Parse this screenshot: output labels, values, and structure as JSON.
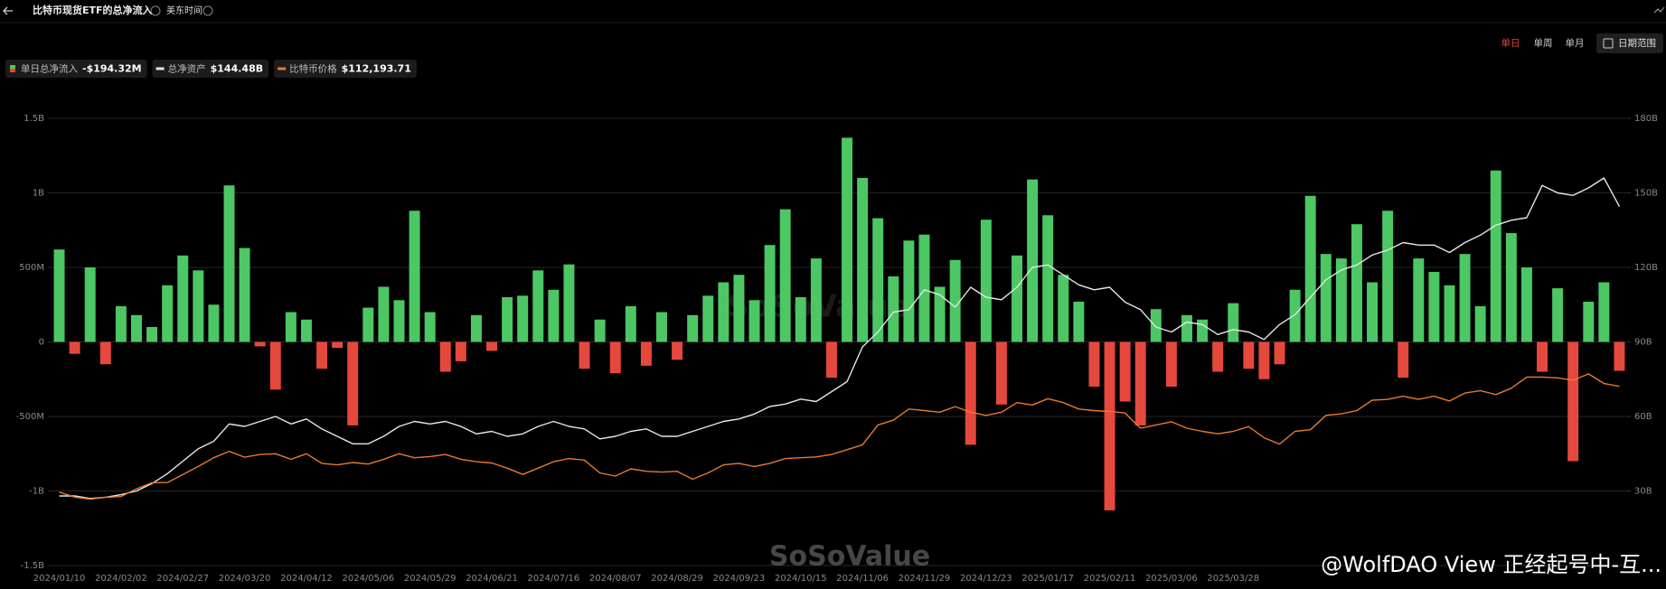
{
  "header": {
    "title": "比特币现货ETF的总净流入",
    "timezone": "美东时间",
    "periods": [
      "单日",
      "单周",
      "单月"
    ],
    "date_range": "日期范围"
  },
  "overlay": {
    "watermark": "SoSoValue",
    "credit": "@WolfDAO View 正经起号中-互..."
  },
  "chart_data": {
    "type": "bar",
    "grid": true,
    "categories": [
      "2024/01/10",
      null,
      null,
      null,
      "2024/02/02",
      null,
      null,
      null,
      "2024/02/27",
      null,
      null,
      null,
      "2024/03/20",
      null,
      null,
      null,
      "2024/04/12",
      null,
      null,
      null,
      "2024/05/06",
      null,
      null,
      null,
      "2024/05/29",
      null,
      null,
      null,
      "2024/06/21",
      null,
      null,
      null,
      "2024/07/16",
      null,
      null,
      null,
      "2024/08/07",
      null,
      null,
      null,
      "2024/08/29",
      null,
      null,
      null,
      "2024/09/23",
      null,
      null,
      null,
      "2024/10/15",
      null,
      null,
      null,
      "2024/11/06",
      null,
      null,
      null,
      "2024/11/29",
      null,
      null,
      null,
      "2024/12/23",
      null,
      null,
      null,
      "2025/01/17",
      null,
      null,
      null,
      "2025/02/11",
      null,
      null,
      null,
      "2025/03/06",
      null,
      null,
      null,
      "2025/03/28",
      null,
      null,
      null,
      null,
      null,
      null,
      null,
      null,
      null,
      null,
      null,
      null,
      null,
      null,
      null,
      null,
      null,
      null,
      null,
      null,
      null,
      null,
      null,
      null,
      null
    ],
    "ylim": [
      -1500,
      1500
    ],
    "yticks": [
      {
        "value": -1500,
        "label": "-1.5B"
      },
      {
        "value": -1000,
        "label": "-1B"
      },
      {
        "value": -500,
        "label": "-500M"
      },
      0,
      {
        "value": 500,
        "label": "500M"
      },
      {
        "value": 1000,
        "label": "1B"
      },
      {
        "value": 1500,
        "label": "1.5B"
      }
    ],
    "y2lim": [
      0,
      180
    ],
    "y2ticks": [
      {
        "value": 30,
        "label": "30B"
      },
      {
        "value": 60,
        "label": "60B"
      },
      {
        "value": 90,
        "label": "90B"
      },
      {
        "value": 120,
        "label": "120B"
      },
      {
        "value": 150,
        "label": "150B"
      },
      {
        "value": 180,
        "label": "180B"
      }
    ],
    "y3lim": [
      0,
      280000
    ],
    "series": [
      {
        "name": "单日总净流入",
        "type": "bar",
        "legend_value": "-$194.32M",
        "color": "#4cc764",
        "negative_color": "#e5483d",
        "values": [
          620,
          -80,
          500,
          -150,
          240,
          180,
          100,
          380,
          580,
          480,
          250,
          1050,
          630,
          -30,
          -320,
          200,
          150,
          -180,
          -40,
          -560,
          230,
          370,
          280,
          880,
          200,
          -200,
          -130,
          180,
          -60,
          300,
          310,
          480,
          350,
          520,
          -180,
          150,
          -210,
          240,
          -160,
          200,
          -120,
          180,
          310,
          400,
          450,
          280,
          650,
          890,
          300,
          560,
          -240,
          1370,
          1100,
          830,
          440,
          680,
          720,
          370,
          550,
          -690,
          820,
          -420,
          580,
          1090,
          850,
          450,
          270,
          -300,
          -1130,
          -400,
          -560,
          220,
          -300,
          180,
          150,
          -200,
          260,
          -180,
          -250,
          -150,
          350,
          980,
          590,
          560,
          790,
          400,
          880,
          -240,
          560,
          470,
          380,
          590,
          240,
          1150,
          730,
          500,
          -200,
          360,
          -800,
          270,
          400,
          -194.32
        ]
      },
      {
        "name": "总净资产",
        "type": "line",
        "axis": "y2",
        "legend_value": "$144.48B",
        "color": "#e6e6e6",
        "values": [
          28,
          28,
          27,
          27.5,
          28.5,
          30,
          33,
          37,
          42,
          47,
          50,
          57,
          56,
          58,
          60,
          57,
          59,
          55,
          52,
          49,
          49,
          52,
          56,
          58,
          57,
          58,
          56,
          53,
          54,
          52,
          53,
          56,
          58,
          56,
          55,
          51,
          52,
          54,
          55,
          52,
          52,
          54,
          56,
          58,
          59,
          61,
          64,
          65,
          67,
          66,
          70,
          74,
          88,
          94,
          102,
          103,
          111,
          109,
          104,
          112,
          108,
          107,
          112,
          120,
          121,
          117,
          113,
          111,
          112,
          106,
          103,
          96,
          94,
          98,
          97,
          93,
          95,
          94,
          91,
          97,
          101,
          108,
          115,
          119,
          121,
          125,
          127,
          130,
          129,
          129,
          126,
          130,
          133,
          137,
          139,
          140,
          153,
          150,
          149,
          152,
          156,
          144.48
        ]
      },
      {
        "name": "比特币价格",
        "type": "line",
        "axis": "y3",
        "legend_value": "$112,193.71",
        "color": "#e8792c",
        "values": [
          46000,
          42800,
          41500,
          42700,
          43200,
          48000,
          51800,
          52000,
          57000,
          62000,
          67500,
          71500,
          67800,
          69500,
          70000,
          66500,
          70000,
          64000,
          63000,
          64500,
          63500,
          66500,
          70000,
          67500,
          68200,
          69500,
          66500,
          65000,
          64200,
          61000,
          57000,
          61000,
          65000,
          67000,
          66000,
          58000,
          56000,
          60500,
          59000,
          58500,
          59000,
          54000,
          58000,
          63000,
          64000,
          62000,
          64000,
          67000,
          67500,
          68000,
          69500,
          72500,
          75600,
          88000,
          91000,
          98000,
          97000,
          96000,
          99500,
          96000,
          94000,
          96000,
          102000,
          100500,
          104500,
          102000,
          98000,
          97000,
          96500,
          95500,
          86000,
          88000,
          90000,
          86000,
          84000,
          82500,
          84000,
          87000,
          80000,
          76000,
          84000,
          85000,
          94000,
          95000,
          97000,
          103500,
          104000,
          106000,
          104000,
          106000,
          103000,
          108000,
          109500,
          107000,
          111000,
          118000,
          118000,
          117500,
          116000,
          120000,
          114000,
          112193.71
        ]
      }
    ]
  }
}
